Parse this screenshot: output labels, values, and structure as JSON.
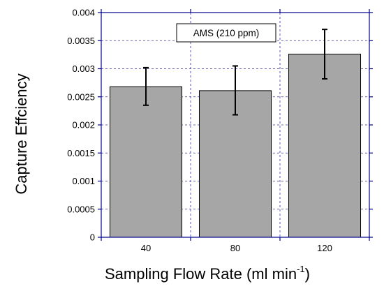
{
  "chart_data": {
    "type": "bar",
    "categories": [
      "40",
      "80",
      "120"
    ],
    "values": [
      0.00268,
      0.00261,
      0.00326
    ],
    "error_low": [
      0.00235,
      0.00218,
      0.00282
    ],
    "error_high": [
      0.00302,
      0.00305,
      0.0037
    ],
    "ylim": [
      0,
      0.004
    ],
    "yticks": [
      0,
      0.0005,
      0.001,
      0.0015,
      0.002,
      0.0025,
      0.003,
      0.0035,
      0.004
    ],
    "ytick_labels": [
      "0",
      "0.0005",
      "0.001",
      "0.0015",
      "0.002",
      "0.0025",
      "0.003",
      "0.0035",
      "0.004"
    ],
    "xlabel": "Sampling Flow Rate (ml min",
    "xlabel_superscript": "-1",
    "xlabel_suffix": ")",
    "ylabel": "Capture Effciency",
    "legend_label": "AMS (210 ppm)",
    "grid": "dashed",
    "bar_color": "#a6a6a6",
    "axis_color": "#00008b",
    "grid_color": "#3333aa"
  }
}
